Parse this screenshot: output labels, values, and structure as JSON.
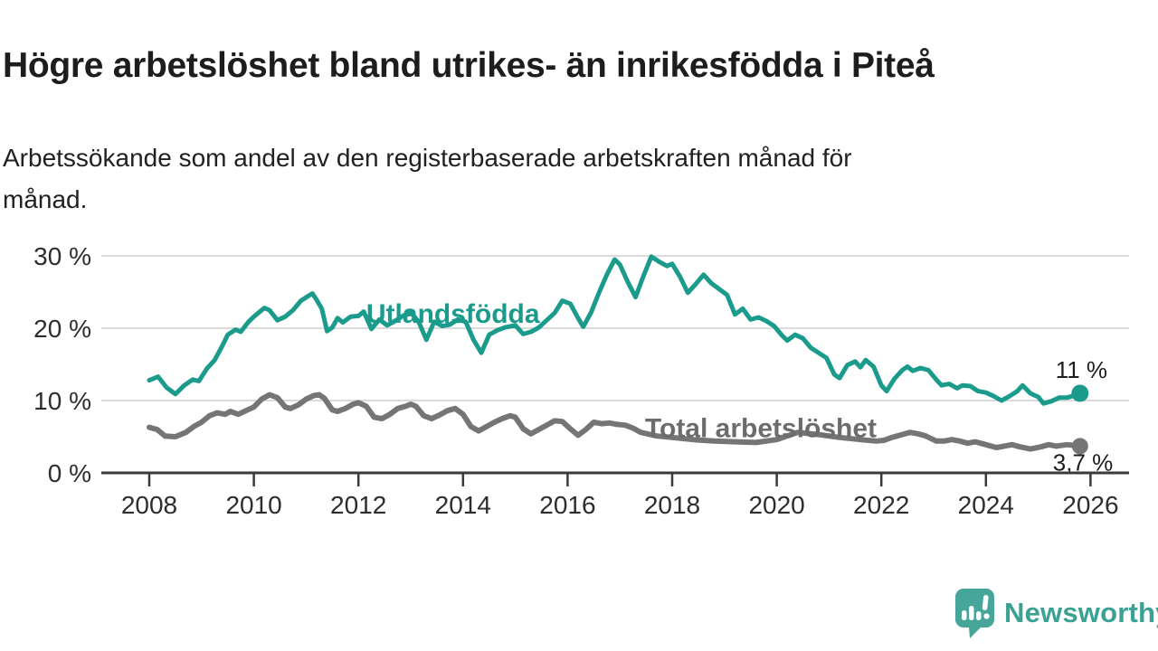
{
  "header": {
    "title": "Högre arbetslöshet bland utrikes- än inrikesfödda i Piteå",
    "subtitle_lines": [
      "Arbetssökande som andel av den registerbaserade arbetskraften månad för",
      "månad."
    ]
  },
  "branding": {
    "name": "Newsworthy",
    "icon": "newsworthy-chart-bubble-icon",
    "bubble_color": "#47A69A",
    "text_color": "#3BA293"
  },
  "chart_data": {
    "type": "line",
    "title": "Högre arbetslöshet bland utrikes- än inrikesfödda i Piteå",
    "subtitle": "Arbetssökande som andel av den registerbaserade arbetskraften månad för månad.",
    "xlabel": "",
    "ylabel": "",
    "unit": "%",
    "grid": "horizontal",
    "legend_position": "inline-labels",
    "xlim": [
      2007.1,
      2026.7
    ],
    "ylim": [
      0,
      32
    ],
    "x_ticks": [
      2008,
      2010,
      2012,
      2014,
      2016,
      2018,
      2020,
      2022,
      2024,
      2026
    ],
    "x_tick_labels": [
      "2008",
      "2010",
      "2012",
      "2014",
      "2016",
      "2018",
      "2020",
      "2022",
      "2024",
      "2026"
    ],
    "y_ticks": [
      0,
      10,
      20,
      30
    ],
    "y_tick_labels": [
      "0 %",
      "10 %",
      "20 %",
      "30 %"
    ],
    "series": [
      {
        "name": "Utlandsfödda",
        "color": "#1A9B8C",
        "label_color": "#1A9B8C",
        "line_width": 5,
        "end_dot_radius": 9.5,
        "label_pos": {
          "year": 2012.15,
          "value": 20.75
        },
        "end_label": {
          "text": "11 %",
          "year": 2025.33,
          "value": 13.15
        },
        "points": [
          [
            2008.0,
            12.8
          ],
          [
            2008.17,
            13.3
          ],
          [
            2008.33,
            11.8
          ],
          [
            2008.5,
            10.9
          ],
          [
            2008.67,
            12.1
          ],
          [
            2008.83,
            12.9
          ],
          [
            2008.95,
            12.7
          ],
          [
            2009.1,
            14.4
          ],
          [
            2009.25,
            15.6
          ],
          [
            2009.4,
            17.6
          ],
          [
            2009.5,
            19.1
          ],
          [
            2009.65,
            19.8
          ],
          [
            2009.75,
            19.5
          ],
          [
            2009.9,
            20.9
          ],
          [
            2010.0,
            21.6
          ],
          [
            2010.2,
            22.8
          ],
          [
            2010.3,
            22.5
          ],
          [
            2010.45,
            21.1
          ],
          [
            2010.6,
            21.6
          ],
          [
            2010.75,
            22.5
          ],
          [
            2010.9,
            23.8
          ],
          [
            2011.05,
            24.5
          ],
          [
            2011.12,
            24.8
          ],
          [
            2011.2,
            23.9
          ],
          [
            2011.3,
            22.7
          ],
          [
            2011.4,
            19.6
          ],
          [
            2011.5,
            20.1
          ],
          [
            2011.6,
            21.4
          ],
          [
            2011.7,
            20.8
          ],
          [
            2011.85,
            21.6
          ],
          [
            2012.0,
            21.7
          ],
          [
            2012.1,
            22.3
          ],
          [
            2012.25,
            19.9
          ],
          [
            2012.4,
            21.2
          ],
          [
            2012.55,
            20.4
          ],
          [
            2012.7,
            21.0
          ],
          [
            2012.85,
            21.7
          ],
          [
            2013.0,
            22.2
          ],
          [
            2013.15,
            20.9
          ],
          [
            2013.3,
            18.4
          ],
          [
            2013.45,
            20.9
          ],
          [
            2013.6,
            20.3
          ],
          [
            2013.75,
            20.5
          ],
          [
            2013.9,
            21.2
          ],
          [
            2014.05,
            20.9
          ],
          [
            2014.2,
            18.4
          ],
          [
            2014.35,
            16.6
          ],
          [
            2014.5,
            19.1
          ],
          [
            2014.65,
            19.7
          ],
          [
            2014.8,
            20.1
          ],
          [
            2015.0,
            20.4
          ],
          [
            2015.15,
            19.2
          ],
          [
            2015.3,
            19.5
          ],
          [
            2015.45,
            20.1
          ],
          [
            2015.6,
            21.1
          ],
          [
            2015.75,
            22.1
          ],
          [
            2015.9,
            23.8
          ],
          [
            2016.05,
            23.4
          ],
          [
            2016.2,
            21.4
          ],
          [
            2016.3,
            20.2
          ],
          [
            2016.45,
            22.2
          ],
          [
            2016.6,
            24.9
          ],
          [
            2016.75,
            27.4
          ],
          [
            2016.9,
            29.5
          ],
          [
            2017.0,
            28.8
          ],
          [
            2017.15,
            26.4
          ],
          [
            2017.3,
            24.3
          ],
          [
            2017.45,
            27.2
          ],
          [
            2017.6,
            29.9
          ],
          [
            2017.75,
            29.2
          ],
          [
            2017.9,
            28.6
          ],
          [
            2018.0,
            28.9
          ],
          [
            2018.15,
            27.1
          ],
          [
            2018.3,
            24.9
          ],
          [
            2018.45,
            26.1
          ],
          [
            2018.6,
            27.4
          ],
          [
            2018.75,
            26.2
          ],
          [
            2018.9,
            25.4
          ],
          [
            2019.05,
            24.6
          ],
          [
            2019.2,
            21.9
          ],
          [
            2019.35,
            22.7
          ],
          [
            2019.5,
            21.2
          ],
          [
            2019.65,
            21.5
          ],
          [
            2019.8,
            21.0
          ],
          [
            2019.95,
            20.3
          ],
          [
            2020.1,
            19.0
          ],
          [
            2020.2,
            18.3
          ],
          [
            2020.35,
            19.1
          ],
          [
            2020.5,
            18.6
          ],
          [
            2020.65,
            17.3
          ],
          [
            2020.8,
            16.6
          ],
          [
            2020.95,
            15.9
          ],
          [
            2021.1,
            13.6
          ],
          [
            2021.2,
            13.1
          ],
          [
            2021.35,
            14.9
          ],
          [
            2021.5,
            15.4
          ],
          [
            2021.6,
            14.6
          ],
          [
            2021.7,
            15.6
          ],
          [
            2021.85,
            14.7
          ],
          [
            2022.0,
            12.1
          ],
          [
            2022.1,
            11.3
          ],
          [
            2022.25,
            13.0
          ],
          [
            2022.4,
            14.2
          ],
          [
            2022.5,
            14.7
          ],
          [
            2022.6,
            14.1
          ],
          [
            2022.75,
            14.5
          ],
          [
            2022.9,
            14.2
          ],
          [
            2023.05,
            12.9
          ],
          [
            2023.15,
            12.1
          ],
          [
            2023.3,
            12.3
          ],
          [
            2023.45,
            11.7
          ],
          [
            2023.55,
            12.1
          ],
          [
            2023.7,
            12.0
          ],
          [
            2023.85,
            11.3
          ],
          [
            2024.0,
            11.1
          ],
          [
            2024.15,
            10.6
          ],
          [
            2024.3,
            10.0
          ],
          [
            2024.45,
            10.6
          ],
          [
            2024.6,
            11.3
          ],
          [
            2024.7,
            12.1
          ],
          [
            2024.85,
            11.0
          ],
          [
            2025.0,
            10.5
          ],
          [
            2025.1,
            9.6
          ],
          [
            2025.25,
            9.9
          ],
          [
            2025.4,
            10.4
          ],
          [
            2025.55,
            10.4
          ],
          [
            2025.7,
            10.7
          ],
          [
            2025.8,
            11.0
          ]
        ]
      },
      {
        "name": "Total arbetslöshet",
        "color": "#757575",
        "label_color": "#6C6C6C",
        "line_width": 6,
        "end_dot_radius": 9,
        "label_pos": {
          "year": 2017.48,
          "value": 4.95
        },
        "end_label": {
          "text": "3,7 %",
          "year": 2025.28,
          "value": 0.3
        },
        "points": [
          [
            2008.0,
            6.3
          ],
          [
            2008.15,
            6.0
          ],
          [
            2008.3,
            5.1
          ],
          [
            2008.5,
            5.0
          ],
          [
            2008.7,
            5.6
          ],
          [
            2008.85,
            6.4
          ],
          [
            2009.0,
            7.0
          ],
          [
            2009.15,
            7.9
          ],
          [
            2009.3,
            8.3
          ],
          [
            2009.45,
            8.1
          ],
          [
            2009.55,
            8.5
          ],
          [
            2009.7,
            8.1
          ],
          [
            2009.85,
            8.6
          ],
          [
            2010.0,
            9.1
          ],
          [
            2010.15,
            10.2
          ],
          [
            2010.3,
            10.8
          ],
          [
            2010.45,
            10.4
          ],
          [
            2010.6,
            9.1
          ],
          [
            2010.7,
            8.9
          ],
          [
            2010.85,
            9.4
          ],
          [
            2011.0,
            10.2
          ],
          [
            2011.15,
            10.7
          ],
          [
            2011.25,
            10.8
          ],
          [
            2011.35,
            10.3
          ],
          [
            2011.5,
            8.7
          ],
          [
            2011.6,
            8.5
          ],
          [
            2011.75,
            8.9
          ],
          [
            2011.9,
            9.5
          ],
          [
            2012.0,
            9.7
          ],
          [
            2012.15,
            9.2
          ],
          [
            2012.3,
            7.7
          ],
          [
            2012.45,
            7.5
          ],
          [
            2012.6,
            8.1
          ],
          [
            2012.75,
            8.9
          ],
          [
            2012.9,
            9.2
          ],
          [
            2013.0,
            9.5
          ],
          [
            2013.1,
            9.2
          ],
          [
            2013.25,
            7.9
          ],
          [
            2013.4,
            7.5
          ],
          [
            2013.55,
            8.0
          ],
          [
            2013.7,
            8.6
          ],
          [
            2013.85,
            8.9
          ],
          [
            2014.0,
            8.1
          ],
          [
            2014.15,
            6.4
          ],
          [
            2014.3,
            5.8
          ],
          [
            2014.45,
            6.4
          ],
          [
            2014.6,
            7.0
          ],
          [
            2014.75,
            7.5
          ],
          [
            2014.9,
            7.9
          ],
          [
            2015.0,
            7.7
          ],
          [
            2015.15,
            6.1
          ],
          [
            2015.3,
            5.4
          ],
          [
            2015.45,
            6.0
          ],
          [
            2015.6,
            6.6
          ],
          [
            2015.75,
            7.2
          ],
          [
            2015.9,
            7.1
          ],
          [
            2016.05,
            6.1
          ],
          [
            2016.2,
            5.2
          ],
          [
            2016.35,
            6.0
          ],
          [
            2016.5,
            7.0
          ],
          [
            2016.65,
            6.8
          ],
          [
            2016.8,
            6.9
          ],
          [
            2016.95,
            6.7
          ],
          [
            2017.1,
            6.6
          ],
          [
            2017.25,
            6.2
          ],
          [
            2017.4,
            5.6
          ],
          [
            2017.7,
            5.1
          ],
          [
            2018.0,
            4.9
          ],
          [
            2018.4,
            4.6
          ],
          [
            2018.8,
            4.4
          ],
          [
            2019.2,
            4.3
          ],
          [
            2019.6,
            4.2
          ],
          [
            2020.0,
            4.6
          ],
          [
            2020.4,
            5.6
          ],
          [
            2020.8,
            5.3
          ],
          [
            2021.2,
            4.9
          ],
          [
            2021.6,
            4.6
          ],
          [
            2021.9,
            4.4
          ],
          [
            2022.05,
            4.5
          ],
          [
            2022.2,
            4.9
          ],
          [
            2022.4,
            5.3
          ],
          [
            2022.55,
            5.6
          ],
          [
            2022.7,
            5.4
          ],
          [
            2022.85,
            5.1
          ],
          [
            2023.05,
            4.4
          ],
          [
            2023.2,
            4.4
          ],
          [
            2023.35,
            4.6
          ],
          [
            2023.5,
            4.4
          ],
          [
            2023.65,
            4.1
          ],
          [
            2023.8,
            4.3
          ],
          [
            2024.0,
            3.9
          ],
          [
            2024.2,
            3.5
          ],
          [
            2024.35,
            3.7
          ],
          [
            2024.5,
            3.9
          ],
          [
            2024.65,
            3.6
          ],
          [
            2024.85,
            3.3
          ],
          [
            2025.05,
            3.6
          ],
          [
            2025.2,
            3.9
          ],
          [
            2025.35,
            3.7
          ],
          [
            2025.55,
            3.9
          ],
          [
            2025.8,
            3.7
          ]
        ]
      }
    ]
  }
}
